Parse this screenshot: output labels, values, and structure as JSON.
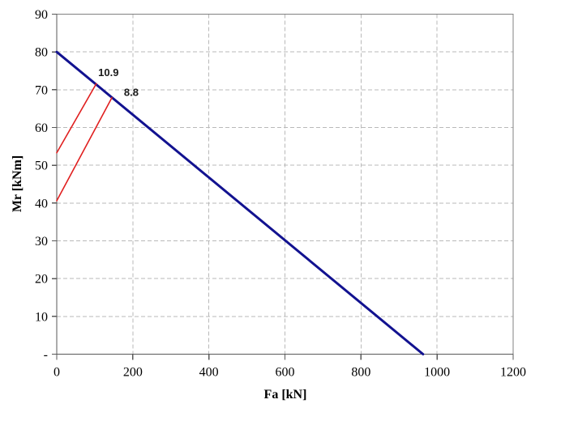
{
  "chart_data": {
    "type": "line",
    "title": "",
    "xlabel": "Fa [kN]",
    "ylabel": "Mr [kNm]",
    "xlim": [
      0,
      1200
    ],
    "ylim": [
      0,
      90
    ],
    "x_ticks": {
      "values": [
        0,
        200,
        400,
        600,
        800,
        1000,
        1200
      ],
      "labels": [
        "0",
        "200",
        "400",
        "600",
        "800",
        "1000",
        "1200"
      ]
    },
    "y_ticks": {
      "values": [
        0,
        10,
        20,
        30,
        40,
        50,
        60,
        70,
        80,
        90
      ],
      "labels": [
        "-",
        "10",
        "20",
        "30",
        "40",
        "50",
        "60",
        "70",
        "80",
        "90"
      ]
    },
    "grid": {
      "style": "dashed",
      "color": "#b9b9b9",
      "dash": "5,3"
    },
    "border_color": "#808080",
    "axis_color": "#595959",
    "tick_label_color": "#000000",
    "background": "#ffffff",
    "legend": "none",
    "series": [
      {
        "name": "interaction-envelope",
        "color": "#121290",
        "width": 3,
        "points": [
          [
            0,
            80
          ],
          [
            963,
            0
          ]
        ]
      },
      {
        "name": "load-path-1",
        "color": "#e01f1f",
        "width": 1.6,
        "points": [
          [
            0,
            53.3
          ],
          [
            104,
            71.6
          ]
        ]
      },
      {
        "name": "load-path-2",
        "color": "#e01f1f",
        "width": 1.6,
        "points": [
          [
            0,
            40.6
          ],
          [
            145,
            67.9
          ]
        ]
      }
    ],
    "annotations": [
      {
        "text": "10.9",
        "x": 136,
        "y": 74.6,
        "color": "#1a1a1a"
      },
      {
        "text": "8.8",
        "x": 196,
        "y": 69.3,
        "color": "#1a1a1a"
      }
    ]
  }
}
